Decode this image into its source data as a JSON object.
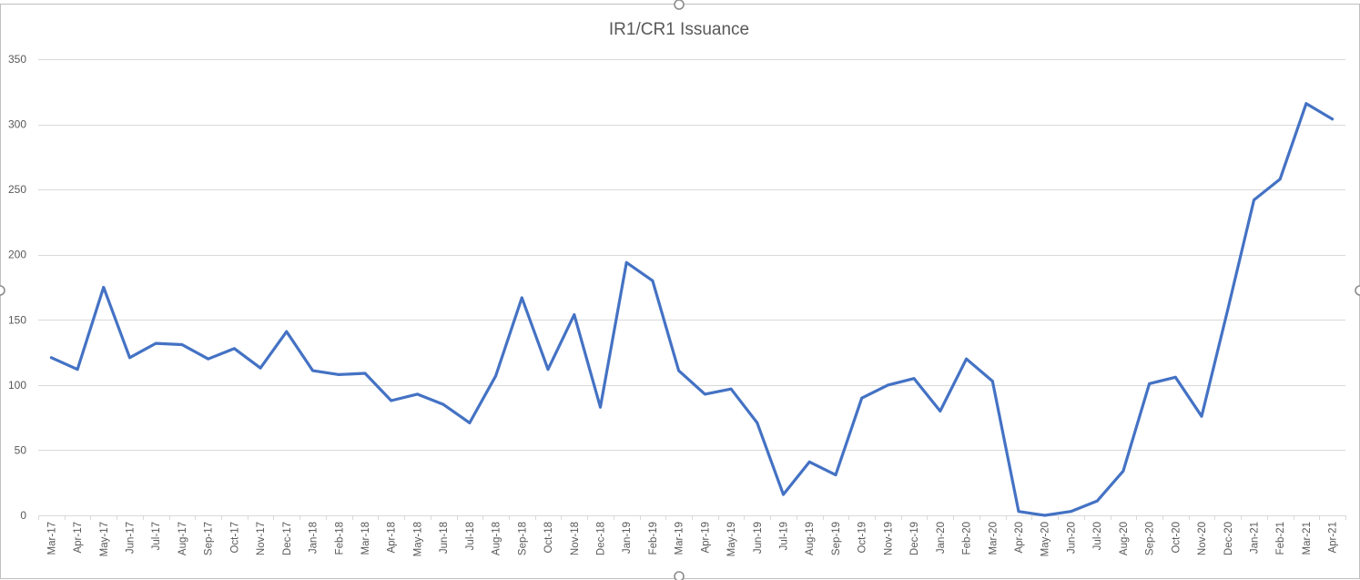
{
  "chart_data": {
    "type": "line",
    "title": "IR1/CR1 Issuance",
    "xlabel": "",
    "ylabel": "",
    "ylim": [
      0,
      350
    ],
    "yticks": [
      0,
      50,
      100,
      150,
      200,
      250,
      300,
      350
    ],
    "grid": true,
    "legend": "none",
    "colors": {
      "series": "#4472c4",
      "grid": "#d9d9d9",
      "text": "#595959"
    },
    "categories": [
      "Mar-17",
      "Apr-17",
      "May-17",
      "Jun-17",
      "Jul-17",
      "Aug-17",
      "Sep-17",
      "Oct-17",
      "Nov-17",
      "Dec-17",
      "Jan-18",
      "Feb-18",
      "Mar-18",
      "Apr-18",
      "May-18",
      "Jun-18",
      "Jul-18",
      "Aug-18",
      "Sep-18",
      "Oct-18",
      "Nov-18",
      "Dec-18",
      "Jan-19",
      "Feb-19",
      "Mar-19",
      "Apr-19",
      "May-19",
      "Jun-19",
      "Jul-19",
      "Aug-19",
      "Sep-19",
      "Oct-19",
      "Nov-19",
      "Dec-19",
      "Jan-20",
      "Feb-20",
      "Mar-20",
      "Apr-20",
      "May-20",
      "Jun-20",
      "Jul-20",
      "Aug-20",
      "Sep-20",
      "Oct-20",
      "Nov-20",
      "Dec-20",
      "Jan-21",
      "Feb-21",
      "Mar-21",
      "Apr-21"
    ],
    "series": [
      {
        "values": [
          121,
          112,
          175,
          121,
          132,
          131,
          120,
          128,
          113,
          141,
          111,
          108,
          109,
          88,
          93,
          85,
          71,
          107,
          167,
          112,
          154,
          83,
          194,
          180,
          111,
          93,
          97,
          71,
          16,
          41,
          31,
          90,
          100,
          105,
          80,
          120,
          103,
          3,
          0,
          3,
          11,
          34,
          101,
          106,
          76,
          158,
          242,
          258,
          316,
          304
        ]
      }
    ]
  }
}
